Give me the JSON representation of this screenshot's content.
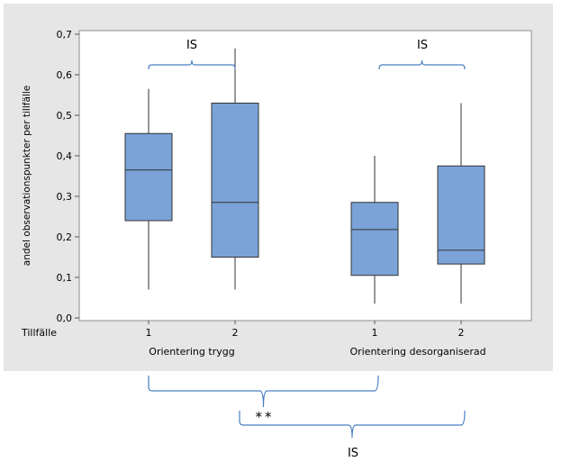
{
  "chart_data": {
    "type": "box",
    "ylabel": "andel observationspunkter per tillfälle",
    "ylim": [
      0,
      0.7
    ],
    "yticks": [
      "0,0",
      "0,1",
      "0,2",
      "0,3",
      "0,4",
      "0,5",
      "0,6",
      "0,7"
    ],
    "x_row_label": "Tillfälle",
    "groups": [
      {
        "label": "Orientering trygg",
        "boxes": [
          {
            "tillfalle": "1",
            "min": 0.07,
            "q1": 0.24,
            "median": 0.365,
            "q3": 0.455,
            "max": 0.565
          },
          {
            "tillfalle": "2",
            "min": 0.07,
            "q1": 0.15,
            "median": 0.285,
            "q3": 0.53,
            "max": 0.665
          }
        ]
      },
      {
        "label": "Orientering desorganiserad",
        "boxes": [
          {
            "tillfalle": "1",
            "min": 0.035,
            "q1": 0.105,
            "median": 0.218,
            "q3": 0.285,
            "max": 0.4
          },
          {
            "tillfalle": "2",
            "min": 0.035,
            "q1": 0.133,
            "median": 0.167,
            "q3": 0.375,
            "max": 0.53
          }
        ]
      }
    ],
    "annotations": {
      "within_trygg": "IS",
      "within_desorganiserad": "IS",
      "between_tillfalle1": "**",
      "between_tillfalle2": "IS"
    },
    "grid": false,
    "box_color": "#7BA3D8",
    "panel_background": "#E6E6E6",
    "plot_background": "#FFFFFF",
    "bracket_color": "#4A7FC1"
  }
}
